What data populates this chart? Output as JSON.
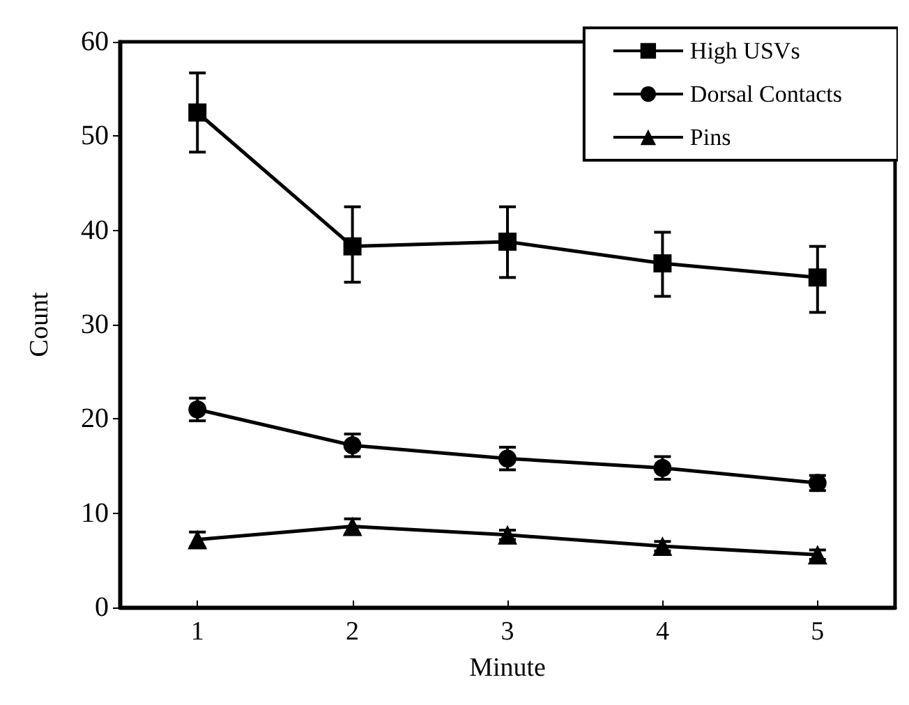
{
  "chart_data": {
    "type": "line",
    "xlabel": "Minute",
    "ylabel": "Count",
    "categories": [
      "1",
      "2",
      "3",
      "4",
      "5"
    ],
    "ylim": [
      0,
      60
    ],
    "yticks": [
      0,
      10,
      20,
      30,
      40,
      50,
      60
    ],
    "grid": false,
    "legend": "top right",
    "line_style": "solid",
    "series": [
      {
        "name": "High USVs",
        "color": "#000000",
        "marker": "square",
        "values": [
          52.5,
          38.3,
          38.8,
          36.5,
          35
        ],
        "errors": [
          [
            48.3,
            56.7
          ],
          [
            34.5,
            42.5
          ],
          [
            35,
            42.5
          ],
          [
            33,
            39.8
          ],
          [
            31.3,
            38.3
          ]
        ]
      },
      {
        "name": "Dorsal Contacts",
        "color": "#000000",
        "marker": "circle",
        "values": [
          21,
          17.2,
          15.8,
          14.8,
          13.2
        ],
        "errors": [
          1.2,
          1.2,
          1.2,
          1.2,
          0.8
        ]
      },
      {
        "name": "Pins",
        "color": "#000000",
        "marker": "triangle",
        "values": [
          7.2,
          8.6,
          7.7,
          6.5,
          5.6
        ],
        "errors": [
          0.8,
          0.8,
          0.5,
          0.5,
          0.5
        ]
      }
    ]
  }
}
